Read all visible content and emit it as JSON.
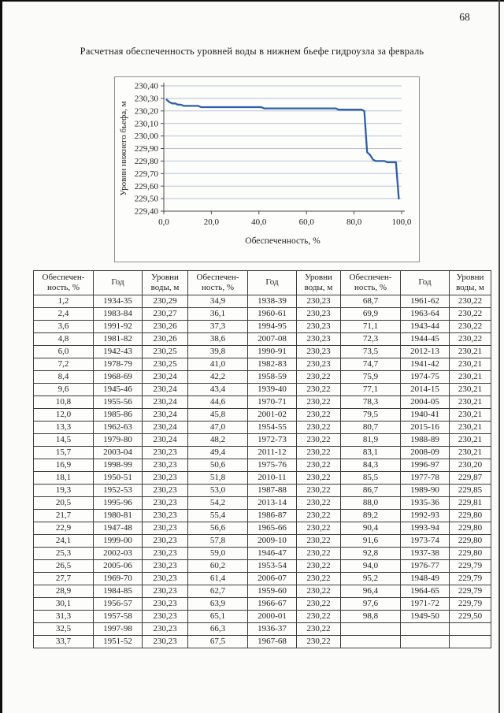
{
  "page": {
    "number": "68",
    "title": "Расчетная обеспеченность уровней воды в нижнем бьефе гидроузла за февраль"
  },
  "chart_data": {
    "type": "line",
    "title": "",
    "xlabel": "Обеспеченность, %",
    "ylabel": "Уровни нижнего бьефа, м",
    "xlim": [
      0,
      100
    ],
    "ylim": [
      229.4,
      230.4
    ],
    "x_tick_labels": [
      "0,0",
      "20,0",
      "40,0",
      "60,0",
      "80,0",
      "100,0"
    ],
    "x_tick_values": [
      0,
      20,
      40,
      60,
      80,
      100
    ],
    "y_tick_labels": [
      "229,40",
      "229,50",
      "229,60",
      "229,70",
      "229,80",
      "229,90",
      "230,00",
      "230,10",
      "230,20",
      "230,30",
      "230,40"
    ],
    "y_tick_values": [
      229.4,
      229.5,
      229.6,
      229.7,
      229.8,
      229.9,
      230.0,
      230.1,
      230.2,
      230.3,
      230.4
    ],
    "grid": true,
    "legend": "none",
    "line_color": "#2f5fa8",
    "grid_color": "#b9c2d4",
    "axis_color": "#4a4a4a",
    "series": [
      {
        "name": "обеспеченность уровней",
        "x": [
          1.2,
          2.4,
          3.6,
          4.8,
          6.0,
          7.2,
          8.4,
          9.6,
          10.8,
          12.0,
          13.3,
          14.5,
          15.7,
          16.9,
          18.1,
          19.3,
          20.5,
          21.7,
          22.9,
          24.1,
          25.3,
          26.5,
          27.7,
          28.9,
          30.1,
          31.3,
          32.5,
          33.7,
          34.9,
          36.1,
          37.3,
          38.6,
          39.8,
          41.0,
          42.2,
          43.4,
          44.6,
          45.8,
          47.0,
          48.2,
          49.4,
          50.6,
          51.8,
          53.0,
          54.2,
          55.4,
          56.6,
          57.8,
          59.0,
          60.2,
          61.4,
          62.7,
          63.9,
          65.1,
          66.3,
          67.5,
          68.7,
          69.9,
          71.1,
          72.3,
          73.5,
          74.7,
          75.9,
          77.1,
          78.3,
          79.5,
          80.7,
          81.9,
          83.1,
          84.3,
          85.5,
          86.7,
          88.0,
          89.2,
          90.4,
          91.6,
          92.8,
          94.0,
          95.2,
          96.4,
          97.6,
          98.8
        ],
        "y": [
          230.29,
          230.27,
          230.26,
          230.26,
          230.25,
          230.25,
          230.24,
          230.24,
          230.24,
          230.24,
          230.24,
          230.24,
          230.23,
          230.23,
          230.23,
          230.23,
          230.23,
          230.23,
          230.23,
          230.23,
          230.23,
          230.23,
          230.23,
          230.23,
          230.23,
          230.23,
          230.23,
          230.23,
          230.23,
          230.23,
          230.23,
          230.23,
          230.23,
          230.23,
          230.22,
          230.22,
          230.22,
          230.22,
          230.22,
          230.22,
          230.22,
          230.22,
          230.22,
          230.22,
          230.22,
          230.22,
          230.22,
          230.22,
          230.22,
          230.22,
          230.22,
          230.22,
          230.22,
          230.22,
          230.22,
          230.22,
          230.22,
          230.22,
          230.22,
          230.22,
          230.21,
          230.21,
          230.21,
          230.21,
          230.21,
          230.21,
          230.21,
          230.21,
          230.21,
          230.2,
          229.87,
          229.85,
          229.81,
          229.8,
          229.8,
          229.8,
          229.8,
          229.79,
          229.79,
          229.79,
          229.79,
          229.5
        ]
      }
    ]
  },
  "table": {
    "headers": [
      "Обеспечен-\nность, %",
      "Год",
      "Уровни\nводы, м",
      "Обеспечен-\nность, %",
      "Год",
      "Уровни\nводы, м",
      "Обеспечен-\nность, %",
      "Год",
      "Уровни\nводы, м"
    ],
    "rows": [
      [
        "1,2",
        "1934-35",
        "230,29",
        "34,9",
        "1938-39",
        "230,23",
        "68,7",
        "1961-62",
        "230,22"
      ],
      [
        "2,4",
        "1983-84",
        "230,27",
        "36,1",
        "1960-61",
        "230,23",
        "69,9",
        "1963-64",
        "230,22"
      ],
      [
        "3,6",
        "1991-92",
        "230,26",
        "37,3",
        "1994-95",
        "230,23",
        "71,1",
        "1943-44",
        "230,22"
      ],
      [
        "4,8",
        "1981-82",
        "230,26",
        "38,6",
        "2007-08",
        "230,23",
        "72,3",
        "1944-45",
        "230,22"
      ],
      [
        "6,0",
        "1942-43",
        "230,25",
        "39,8",
        "1990-91",
        "230,23",
        "73,5",
        "2012-13",
        "230,21"
      ],
      [
        "7,2",
        "1978-79",
        "230,25",
        "41,0",
        "1982-83",
        "230,23",
        "74,7",
        "1941-42",
        "230,21"
      ],
      [
        "8,4",
        "1968-69",
        "230,24",
        "42,2",
        "1958-59",
        "230,22",
        "75,9",
        "1974-75",
        "230,21"
      ],
      [
        "9,6",
        "1945-46",
        "230,24",
        "43,4",
        "1939-40",
        "230,22",
        "77,1",
        "2014-15",
        "230,21"
      ],
      [
        "10,8",
        "1955-56",
        "230,24",
        "44,6",
        "1970-71",
        "230,22",
        "78,3",
        "2004-05",
        "230,21"
      ],
      [
        "12,0",
        "1985-86",
        "230,24",
        "45,8",
        "2001-02",
        "230,22",
        "79,5",
        "1940-41",
        "230,21"
      ],
      [
        "13,3",
        "1962-63",
        "230,24",
        "47,0",
        "1954-55",
        "230,22",
        "80,7",
        "2015-16",
        "230,21"
      ],
      [
        "14,5",
        "1979-80",
        "230,24",
        "48,2",
        "1972-73",
        "230,22",
        "81,9",
        "1988-89",
        "230,21"
      ],
      [
        "15,7",
        "2003-04",
        "230,23",
        "49,4",
        "2011-12",
        "230,22",
        "83,1",
        "2008-09",
        "230,21"
      ],
      [
        "16,9",
        "1998-99",
        "230,23",
        "50,6",
        "1975-76",
        "230,22",
        "84,3",
        "1996-97",
        "230,20"
      ],
      [
        "18,1",
        "1950-51",
        "230,23",
        "51,8",
        "2010-11",
        "230,22",
        "85,5",
        "1977-78",
        "229,87"
      ],
      [
        "19,3",
        "1952-53",
        "230,23",
        "53,0",
        "1987-88",
        "230,22",
        "86,7",
        "1989-90",
        "229,85"
      ],
      [
        "20,5",
        "1995-96",
        "230,23",
        "54,2",
        "2013-14",
        "230,22",
        "88,0",
        "1935-36",
        "229,81"
      ],
      [
        "21,7",
        "1980-81",
        "230,23",
        "55,4",
        "1986-87",
        "230,22",
        "89,2",
        "1992-93",
        "229,80"
      ],
      [
        "22,9",
        "1947-48",
        "230,23",
        "56,6",
        "1965-66",
        "230,22",
        "90,4",
        "1993-94",
        "229,80"
      ],
      [
        "24,1",
        "1999-00",
        "230,23",
        "57,8",
        "2009-10",
        "230,22",
        "91,6",
        "1973-74",
        "229,80"
      ],
      [
        "25,3",
        "2002-03",
        "230,23",
        "59,0",
        "1946-47",
        "230,22",
        "92,8",
        "1937-38",
        "229,80"
      ],
      [
        "26,5",
        "2005-06",
        "230,23",
        "60,2",
        "1953-54",
        "230,22",
        "94,0",
        "1976-77",
        "229,79"
      ],
      [
        "27,7",
        "1969-70",
        "230,23",
        "61,4",
        "2006-07",
        "230,22",
        "95,2",
        "1948-49",
        "229,79"
      ],
      [
        "28,9",
        "1984-85",
        "230,23",
        "62,7",
        "1959-60",
        "230,22",
        "96,4",
        "1964-65",
        "229,79"
      ],
      [
        "30,1",
        "1956-57",
        "230,23",
        "63,9",
        "1966-67",
        "230,22",
        "97,6",
        "1971-72",
        "229,79"
      ],
      [
        "31,3",
        "1957-58",
        "230,23",
        "65,1",
        "2000-01",
        "230,22",
        "98,8",
        "1949-50",
        "229,50"
      ],
      [
        "32,5",
        "1997-98",
        "230,23",
        "66,3",
        "1936-37",
        "230,22",
        "",
        "",
        ""
      ],
      [
        "33,7",
        "1951-52",
        "230,23",
        "67,5",
        "1967-68",
        "230,22",
        "",
        "",
        ""
      ]
    ]
  }
}
